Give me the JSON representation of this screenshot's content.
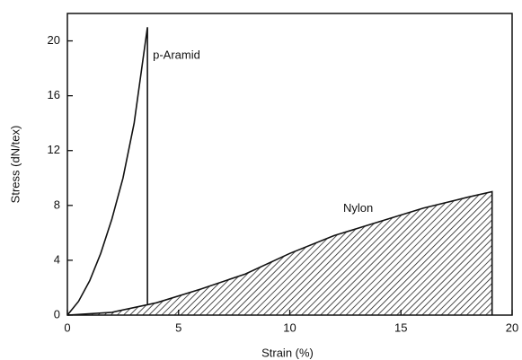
{
  "chart_data": {
    "type": "line",
    "xlabel": "Strain (%)",
    "ylabel": "Stress (dN/tex)",
    "xlim": [
      0,
      20
    ],
    "ylim": [
      0,
      22
    ],
    "xticks": [
      0,
      5,
      10,
      15,
      20
    ],
    "yticks": [
      0,
      4,
      8,
      12,
      16,
      20
    ],
    "series": [
      {
        "name": "p-Aramid",
        "color": "#111111",
        "hatch": false,
        "x": [
          0,
          0.5,
          1,
          1.5,
          2,
          2.5,
          3,
          3.6,
          3.6
        ],
        "values": [
          0,
          1,
          2.5,
          4.5,
          7,
          10,
          14,
          21,
          0.8
        ]
      },
      {
        "name": "Nylon",
        "color": "#111111",
        "hatch": true,
        "x": [
          0,
          2,
          4,
          6,
          8,
          10,
          12,
          14,
          16,
          18,
          19.1,
          19.1
        ],
        "values": [
          0,
          0.2,
          0.9,
          1.9,
          3,
          4.5,
          5.8,
          6.8,
          7.8,
          8.6,
          9,
          0
        ]
      }
    ]
  }
}
